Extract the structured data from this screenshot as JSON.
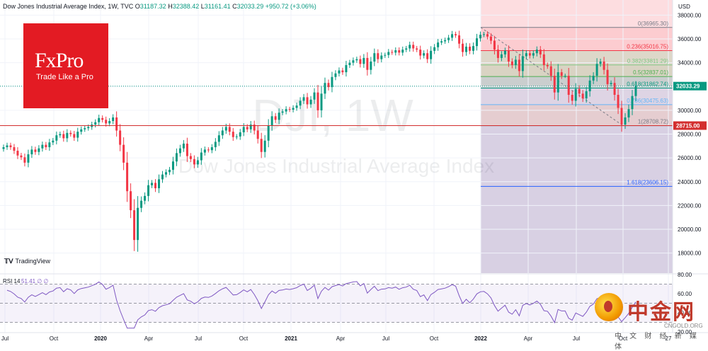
{
  "header": {
    "title": "Dow Jones Industrial Average Index, 1W, TVC",
    "o_label": "O",
    "o_value": "31187.32",
    "h_label": "H",
    "h_value": "32388.42",
    "l_label": "L",
    "l_value": "31161.41",
    "c_label": "C",
    "c_value": "32033.29",
    "change": "+950.72 (+3.06%)"
  },
  "currency": "USD",
  "brand": {
    "name": "FxPro",
    "tagline": "Trade Like a Pro"
  },
  "tradingview_label": "TradingView",
  "watermark": {
    "symbol": "DJI, 1W",
    "name": "Dow Jones Industrial Average Index"
  },
  "rsi": {
    "label": "RSI",
    "length": "14",
    "value": "51.41",
    "extra1": "∅",
    "extra2": "∅",
    "levels": [
      "80.00",
      "60.00",
      "40.00",
      "20.00"
    ]
  },
  "cn_logo": {
    "big": "中金网",
    "domain": "CNGOLD.ORG",
    "sub": "中 文 财 经 新 媒 体"
  },
  "colors": {
    "up": "#089981",
    "down": "#f23645",
    "accent": "#2962ff",
    "red_line": "#d32f2f",
    "rsi": "#7e57c2"
  },
  "chart_data": {
    "type": "candlestick",
    "title": "Dow Jones Industrial Average Index, 1W, TVC",
    "y_ticks": [
      "38000.00",
      "36000.00",
      "34000.00",
      "32000.00",
      "30000.00",
      "28000.00",
      "26000.00",
      "24000.00",
      "22000.00",
      "20000.00",
      "18000.00"
    ],
    "x_ticks": [
      "Jul",
      "Oct",
      "2020",
      "Apr",
      "Jul",
      "Oct",
      "2021",
      "Apr",
      "Jul",
      "Oct",
      "2022",
      "Apr",
      "Jul",
      "Oct",
      "27"
    ],
    "price_labels": [
      {
        "value": "32033.29",
        "color": "#089981"
      },
      {
        "value": "28715.00",
        "color": "#d32f2f"
      }
    ],
    "fibonacci": [
      {
        "level": "0",
        "price": "36965.30"
      },
      {
        "level": "0.236",
        "price": "35016.75"
      },
      {
        "level": "0.382",
        "price": "33811.29"
      },
      {
        "level": "0.5",
        "price": "32837.01"
      },
      {
        "level": "0.618",
        "price": "31862.74"
      },
      {
        "level": "0.786",
        "price": "30475.63"
      },
      {
        "level": "1",
        "price": "28708.72"
      },
      {
        "level": "1.618",
        "price": "23606.15"
      }
    ],
    "horizontal_level": 28715.0,
    "ylim": [
      16500,
      39000
    ],
    "rsi_value": 51.41,
    "weekly_closes": [
      26900,
      27050,
      26900,
      26600,
      26200,
      26050,
      25600,
      26300,
      26700,
      26500,
      26800,
      27100,
      26900,
      27300,
      27450,
      27900,
      28000,
      27650,
      28100,
      28000,
      27700,
      28200,
      28400,
      28500,
      28600,
      28800,
      29000,
      29350,
      29200,
      28900,
      29100,
      29400,
      28300,
      27100,
      25600,
      23200,
      21600,
      19100,
      21800,
      22400,
      22800,
      23700,
      23900,
      23450,
      24200,
      24600,
      24800,
      25000,
      25700,
      26400,
      26800,
      27200,
      26150,
      25900,
      25450,
      25800,
      26450,
      26700,
      26650,
      26900,
      27350,
      27900,
      28300,
      28600,
      28200,
      27750,
      27800,
      28150,
      28600,
      28400,
      28800,
      28300,
      27600,
      26500,
      27450,
      28700,
      29500,
      29200,
      29800,
      29900,
      30100,
      30050,
      30200,
      30400,
      30800,
      31100,
      30500,
      30900,
      31500,
      30000,
      31400,
      32300,
      31950,
      32800,
      33100,
      33350,
      33200,
      33800,
      34000,
      34200,
      34300,
      33900,
      34400,
      33400,
      34100,
      34800,
      34300,
      34600,
      34650,
      34900,
      34850,
      35050,
      34850,
      35100,
      35200,
      35500,
      35200,
      35100,
      34600,
      34800,
      34300,
      35000,
      35300,
      35700,
      35800,
      35900,
      36100,
      36400,
      36300,
      35600,
      34900,
      35350,
      35000,
      35400,
      36050,
      36350,
      36400,
      36200,
      35850,
      35100,
      34400,
      34700,
      35000,
      34100,
      33800,
      34250,
      33300,
      34550,
      34800,
      34600,
      34800,
      35100,
      34700,
      33800,
      33700,
      32900,
      31500,
      33200,
      32900,
      32900,
      31300,
      30800,
      31800,
      31400,
      31000,
      31600,
      32500,
      32900,
      33900,
      34100,
      33400,
      32200,
      32300,
      31300,
      30200,
      28800,
      29400,
      30100,
      31200,
      32033.29
    ]
  }
}
